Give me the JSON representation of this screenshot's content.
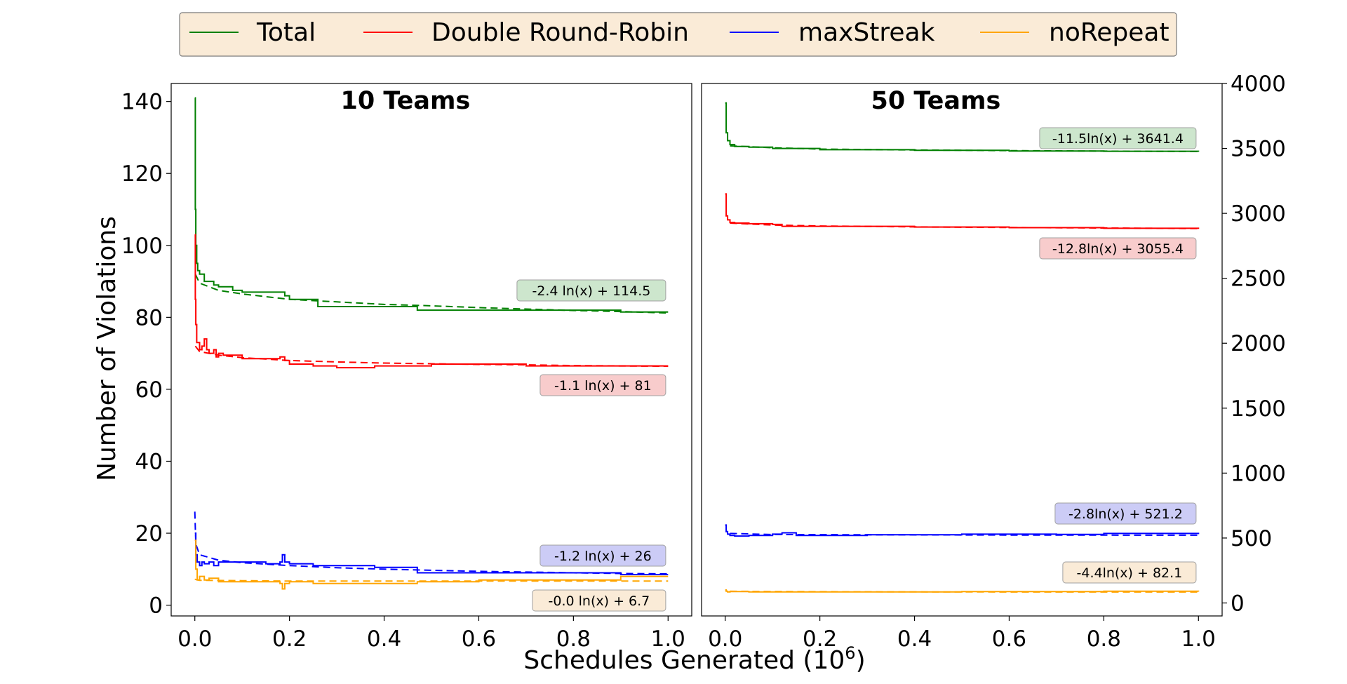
{
  "figure": {
    "xlabel": "Schedules Generated (10",
    "xlabel_sup": "6",
    "xlabel_close": ")",
    "ylabel": "Number of Violations"
  },
  "legend": {
    "placement": "top-center",
    "background": "#faebd7",
    "entries": [
      {
        "label": "Total",
        "color": "#008000"
      },
      {
        "label": "Double Round-Robin",
        "color": "#ff0000"
      },
      {
        "label": "maxStreak",
        "color": "#0000ff"
      },
      {
        "label": "noRepeat",
        "color": "#ffa500"
      }
    ]
  },
  "chart_data": [
    {
      "type": "line",
      "title": "10 Teams",
      "xlim": [
        -0.05,
        1.05
      ],
      "ylim": [
        -3,
        145
      ],
      "xticks": [
        0.0,
        0.2,
        0.4,
        0.6,
        0.8,
        1.0
      ],
      "xtick_labels": [
        "0.0",
        "0.2",
        "0.4",
        "0.6",
        "0.8",
        "1.0"
      ],
      "yticks": [
        0,
        20,
        40,
        60,
        80,
        100,
        120,
        140
      ],
      "ytick_labels": [
        "0",
        "20",
        "40",
        "60",
        "80",
        "100",
        "120",
        "140"
      ],
      "yaxis_side": "left",
      "series": [
        {
          "name": "Total",
          "color": "#008000",
          "x": [
            0.0,
            0.001,
            0.002,
            0.004,
            0.006,
            0.01,
            0.02,
            0.04,
            0.05,
            0.08,
            0.1,
            0.14,
            0.19,
            0.2,
            0.24,
            0.26,
            0.34,
            0.47,
            0.5,
            0.6,
            0.8,
            0.9,
            1.0
          ],
          "y": [
            141,
            110,
            100,
            95,
            93,
            92,
            90,
            89,
            88.5,
            87.5,
            87,
            87,
            86,
            85,
            85,
            83,
            83,
            82,
            82,
            82,
            82,
            81.5,
            81.5
          ],
          "fit_label": "-2.4 ln(x) + 114.5",
          "fit_x": [
            0.001,
            0.01,
            0.05,
            0.1,
            0.2,
            0.3,
            0.4,
            0.5,
            0.6,
            0.7,
            0.8,
            0.9,
            1.0
          ],
          "fit_y": [
            92,
            89.5,
            87.5,
            86.5,
            85,
            84.3,
            83.6,
            83.2,
            82.7,
            82.3,
            81.9,
            81.6,
            81.2
          ]
        },
        {
          "name": "Double Round-Robin",
          "color": "#ff0000",
          "x": [
            0.0,
            0.001,
            0.002,
            0.004,
            0.01,
            0.015,
            0.02,
            0.025,
            0.03,
            0.04,
            0.045,
            0.05,
            0.06,
            0.1,
            0.15,
            0.18,
            0.19,
            0.2,
            0.25,
            0.3,
            0.38,
            0.5,
            0.6,
            0.7,
            0.9,
            1.0
          ],
          "y": [
            103,
            85,
            78,
            73,
            71,
            72,
            74,
            71,
            70,
            71,
            69,
            70,
            69.5,
            68.5,
            68.5,
            69,
            68,
            67,
            66.5,
            66,
            66.5,
            67,
            67,
            66.5,
            66.5,
            66.5
          ],
          "fit_label": "-1.1 ln(x) + 81",
          "fit_x": [
            0.001,
            0.01,
            0.05,
            0.1,
            0.2,
            0.3,
            0.4,
            0.5,
            0.6,
            0.7,
            0.8,
            0.9,
            1.0
          ],
          "fit_y": [
            72,
            70.5,
            69.5,
            68.8,
            68,
            67.6,
            67.3,
            67.1,
            66.9,
            66.8,
            66.6,
            66.5,
            66.4
          ]
        },
        {
          "name": "maxStreak",
          "color": "#0000ff",
          "x": [
            0.0,
            0.002,
            0.005,
            0.01,
            0.015,
            0.02,
            0.03,
            0.04,
            0.05,
            0.1,
            0.15,
            0.18,
            0.185,
            0.19,
            0.2,
            0.25,
            0.3,
            0.38,
            0.47,
            0.5,
            0.6,
            0.8,
            0.9,
            1.0
          ],
          "y": [
            20,
            14,
            12,
            11,
            12,
            11.5,
            12,
            11,
            12,
            12,
            11.5,
            12,
            14,
            12,
            11.5,
            11,
            11,
            10.5,
            9,
            9,
            9,
            9,
            8.5,
            8.5
          ],
          "fit_label": "-1.2 ln(x) + 26",
          "fit_x": [
            0.0,
            0.002,
            0.01,
            0.05,
            0.1,
            0.2,
            0.3,
            0.4,
            0.5,
            0.6,
            0.7,
            0.8,
            0.9,
            1.0
          ],
          "fit_y": [
            26,
            17,
            14,
            12.5,
            11.8,
            11,
            10.4,
            10,
            9.7,
            9.4,
            9.2,
            9,
            8.8,
            8.7
          ]
        },
        {
          "name": "noRepeat",
          "color": "#ffa500",
          "x": [
            0.0,
            0.002,
            0.005,
            0.01,
            0.02,
            0.03,
            0.05,
            0.08,
            0.1,
            0.15,
            0.18,
            0.185,
            0.19,
            0.2,
            0.25,
            0.3,
            0.47,
            0.5,
            0.6,
            0.8,
            0.9,
            1.0
          ],
          "y": [
            18,
            10,
            7,
            8,
            7,
            7.5,
            6.5,
            6.5,
            6.5,
            6.5,
            6,
            4.5,
            6,
            6.5,
            6,
            6,
            6.5,
            6.5,
            7,
            7,
            8,
            8
          ],
          "fit_label": "-0.0 ln(x) + 6.7",
          "fit_x": [
            0.0,
            0.01,
            0.1,
            0.2,
            0.4,
            0.6,
            0.8,
            1.0
          ],
          "fit_y": [
            7.2,
            6.9,
            6.8,
            6.7,
            6.7,
            6.7,
            6.7,
            6.7
          ]
        }
      ]
    },
    {
      "type": "line",
      "title": "50 Teams",
      "xlim": [
        -0.05,
        1.05
      ],
      "ylim": [
        -100,
        4000
      ],
      "xticks": [
        0.0,
        0.2,
        0.4,
        0.6,
        0.8,
        1.0
      ],
      "xtick_labels": [
        "0.0",
        "0.2",
        "0.4",
        "0.6",
        "0.8",
        "1.0"
      ],
      "yticks": [
        0,
        500,
        1000,
        1500,
        2000,
        2500,
        3000,
        3500,
        4000
      ],
      "ytick_labels": [
        "0",
        "500",
        "1000",
        "1500",
        "2000",
        "2500",
        "3000",
        "3500",
        "4000"
      ],
      "yaxis_side": "right",
      "series": [
        {
          "name": "Total",
          "color": "#008000",
          "x": [
            0.0,
            0.002,
            0.005,
            0.01,
            0.02,
            0.05,
            0.1,
            0.2,
            0.4,
            0.6,
            0.8,
            1.0
          ],
          "y": [
            3850,
            3620,
            3560,
            3530,
            3515,
            3510,
            3500,
            3490,
            3485,
            3480,
            3478,
            3475
          ],
          "fit_label": "-11.5ln(x) + 3641.4",
          "fit_x": [
            0.01,
            0.1,
            0.2,
            0.4,
            0.6,
            0.8,
            1.0
          ],
          "fit_y": [
            3520,
            3505,
            3495,
            3488,
            3483,
            3479,
            3476
          ]
        },
        {
          "name": "Double Round-Robin",
          "color": "#ff0000",
          "x": [
            0.0,
            0.002,
            0.005,
            0.01,
            0.02,
            0.05,
            0.1,
            0.12,
            0.2,
            0.4,
            0.6,
            0.8,
            1.0
          ],
          "y": [
            3150,
            2980,
            2950,
            2930,
            2925,
            2920,
            2915,
            2900,
            2900,
            2895,
            2890,
            2885,
            2880
          ],
          "fit_label": "-12.8ln(x) + 3055.4",
          "fit_x": [
            0.01,
            0.1,
            0.2,
            0.4,
            0.6,
            0.8,
            1.0
          ],
          "fit_y": [
            2925,
            2910,
            2903,
            2896,
            2891,
            2887,
            2883
          ]
        },
        {
          "name": "maxStreak",
          "color": "#0000ff",
          "x": [
            0.0,
            0.002,
            0.005,
            0.01,
            0.02,
            0.05,
            0.1,
            0.12,
            0.15,
            0.3,
            0.5,
            0.7,
            0.8,
            1.0
          ],
          "y": [
            600,
            550,
            530,
            520,
            515,
            520,
            530,
            540,
            520,
            525,
            530,
            528,
            535,
            530
          ],
          "fit_label": "-2.8ln(x) + 521.2",
          "fit_x": [
            0.01,
            0.1,
            0.3,
            0.6,
            1.0
          ],
          "fit_y": [
            535,
            527,
            525,
            523,
            522
          ]
        },
        {
          "name": "noRepeat",
          "color": "#ffa500",
          "x": [
            0.0,
            0.002,
            0.005,
            0.01,
            0.05,
            0.2,
            0.5,
            0.8,
            1.0
          ],
          "y": [
            100,
            90,
            85,
            88,
            85,
            85,
            88,
            90,
            88
          ],
          "fit_label": "-4.4ln(x) + 82.1",
          "fit_x": [
            0.01,
            0.2,
            0.5,
            1.0
          ],
          "fit_y": [
            90,
            87,
            85,
            84
          ]
        }
      ]
    }
  ]
}
